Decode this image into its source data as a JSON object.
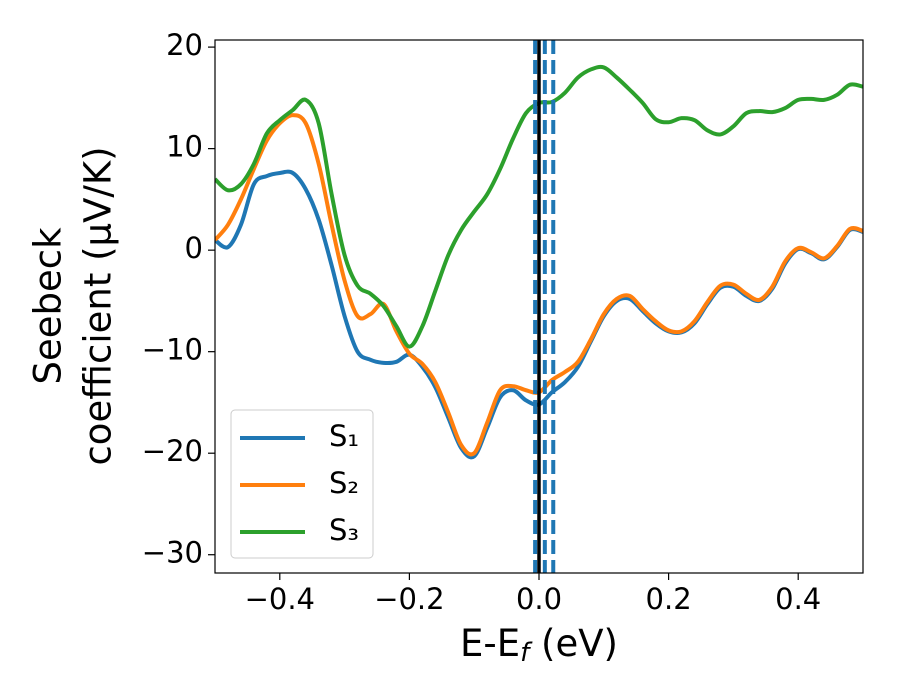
{
  "chart_data": {
    "type": "line",
    "xlabel": [
      "E-E",
      "f",
      " (eV)"
    ],
    "ylabel": [
      "Seebeck",
      "coefficient  (μV/K)"
    ],
    "xlim": [
      -0.5,
      0.5
    ],
    "ylim": [
      -31.8,
      20.7
    ],
    "xticks": [
      {
        "value": -0.4,
        "label": "−0.4"
      },
      {
        "value": -0.2,
        "label": "−0.2"
      },
      {
        "value": 0,
        "label": "0.0"
      },
      0.2,
      0.4
    ],
    "yticks": [
      {
        "value": -30,
        "label": "−30"
      },
      {
        "value": -20,
        "label": "−20"
      },
      {
        "value": -10,
        "label": "−10"
      },
      0,
      10,
      20
    ],
    "legend": "lower left",
    "x": [
      -0.5,
      -0.48,
      -0.46,
      -0.44,
      -0.42,
      -0.4,
      -0.38,
      -0.36,
      -0.34,
      -0.32,
      -0.3,
      -0.28,
      -0.26,
      -0.24,
      -0.22,
      -0.2,
      -0.18,
      -0.16,
      -0.14,
      -0.12,
      -0.1,
      -0.08,
      -0.06,
      -0.04,
      -0.02,
      0,
      0.02,
      0.04,
      0.06,
      0.08,
      0.1,
      0.12,
      0.14,
      0.16,
      0.18,
      0.2,
      0.22,
      0.24,
      0.26,
      0.28,
      0.3,
      0.32,
      0.34,
      0.36,
      0.38,
      0.4,
      0.42,
      0.44,
      0.46,
      0.48,
      0.5
    ],
    "series": [
      {
        "name": "S₁",
        "color": "#1f77b4",
        "values": [
          1.0,
          0.3,
          2.5,
          6.5,
          7.3,
          7.6,
          7.6,
          6.0,
          3.0,
          -1.5,
          -6.5,
          -10,
          -10.8,
          -11.1,
          -11.0,
          -10.3,
          -11.5,
          -13.5,
          -16.5,
          -19.5,
          -20.3,
          -17.5,
          -14.5,
          -13.8,
          -14.8,
          -15.2,
          -14.0,
          -13.0,
          -11.5,
          -9.0,
          -6.5,
          -5.0,
          -4.8,
          -6.0,
          -7.2,
          -8.0,
          -8.1,
          -7.2,
          -5.3,
          -3.7,
          -3.6,
          -4.5,
          -5.0,
          -3.8,
          -1.3,
          0.1,
          -0.3,
          -0.9,
          0.3,
          2.0,
          1.8
        ]
      },
      {
        "name": "S₂",
        "color": "#ff7f0e",
        "values": [
          1.0,
          2.5,
          5.0,
          8.0,
          10.8,
          12.5,
          13.3,
          12.5,
          8.5,
          2.5,
          -3.0,
          -6.5,
          -6.3,
          -5.3,
          -8.0,
          -10.2,
          -11.2,
          -13.0,
          -16.0,
          -19.2,
          -20.0,
          -17.0,
          -13.8,
          -13.4,
          -13.8,
          -14.0,
          -12.8,
          -12.0,
          -11.0,
          -8.8,
          -6.3,
          -4.8,
          -4.5,
          -5.8,
          -7.0,
          -7.9,
          -8.0,
          -7.0,
          -5.1,
          -3.5,
          -3.4,
          -4.3,
          -4.9,
          -3.6,
          -1.1,
          0.2,
          -0.2,
          -0.8,
          0.4,
          2.1,
          1.9
        ]
      },
      {
        "name": "S₃",
        "color": "#2ca02c",
        "values": [
          7.0,
          5.9,
          6.5,
          8.5,
          11.5,
          12.8,
          13.8,
          14.8,
          12.5,
          5.5,
          -0.5,
          -3.5,
          -4.3,
          -5.5,
          -7.5,
          -9.5,
          -7.5,
          -4.0,
          -0.5,
          2.0,
          3.8,
          5.5,
          8.0,
          11.0,
          13.5,
          14.5,
          14.6,
          15.5,
          17.0,
          17.8,
          18.0,
          17.0,
          15.8,
          14.5,
          12.9,
          12.6,
          13.0,
          12.8,
          11.8,
          11.4,
          12.2,
          13.5,
          13.7,
          13.6,
          14.0,
          14.8,
          14.9,
          14.8,
          15.3,
          16.3,
          16.1
        ]
      }
    ],
    "vlines": [
      {
        "x": -0.006,
        "color": "#1f77b4",
        "style": "dashed"
      },
      {
        "x": 0.009,
        "color": "#1f77b4",
        "style": "dashed"
      },
      {
        "x": 0.022,
        "color": "#1f77b4",
        "style": "dashed"
      },
      {
        "x": 0,
        "color": "#000000",
        "style": "solid"
      }
    ]
  }
}
